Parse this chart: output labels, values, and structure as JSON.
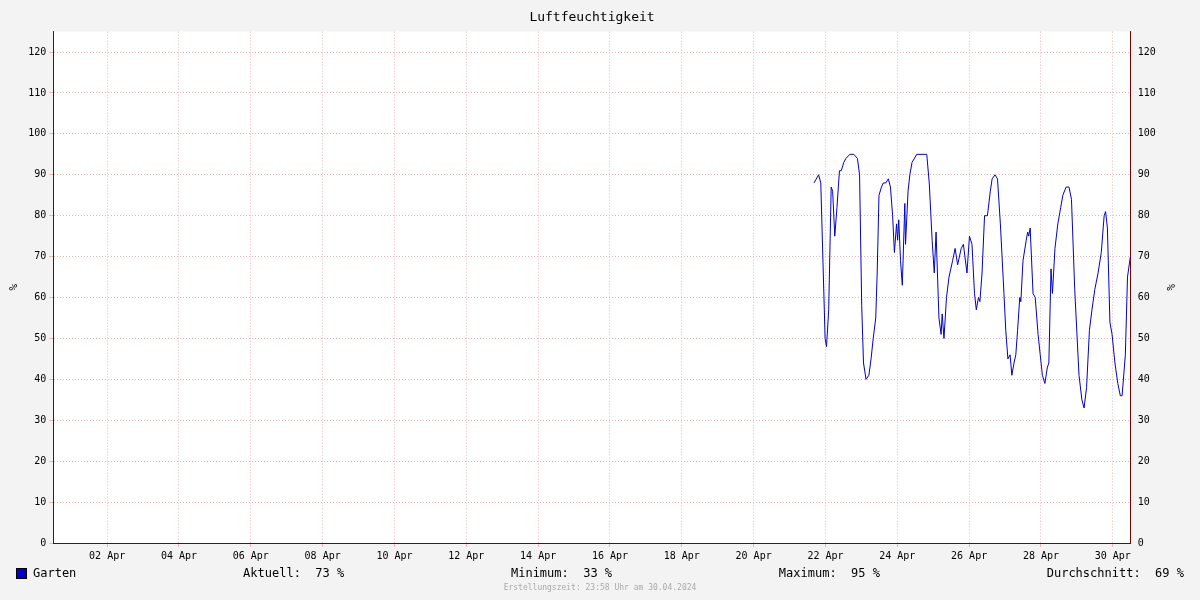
{
  "chart_data": {
    "type": "line",
    "title": "Luftfeuchtigkeit",
    "ylabel": "%",
    "y2label": "%",
    "x": [
      "2024-04-22T04:19",
      "2024-04-22T07:26",
      "2024-04-22T08:53",
      "2024-04-22T11:46",
      "2024-04-22T12:43",
      "2024-04-22T14:10",
      "2024-04-22T15:50",
      "2024-04-22T16:48",
      "2024-04-22T18:14",
      "2024-04-22T19:41",
      "2024-04-22T21:22",
      "2024-04-22T22:34",
      "2024-04-23T00:14",
      "2024-04-23T01:41",
      "2024-04-23T04:19",
      "2024-04-23T06:58",
      "2024-04-23T09:22",
      "2024-04-23T10:48",
      "2024-04-23T12:14",
      "2024-04-23T13:26",
      "2024-04-23T15:07",
      "2024-04-23T17:02",
      "2024-04-23T18:29",
      "2024-04-23T19:55",
      "2024-04-23T21:36",
      "2024-04-23T22:34",
      "2024-04-23T23:46",
      "2024-04-24T01:26",
      "2024-04-24T02:38",
      "2024-04-24T04:19",
      "2024-04-24T06:00",
      "2024-04-24T07:26",
      "2024-04-24T08:53",
      "2024-04-24T10:05",
      "2024-04-24T11:31",
      "2024-04-24T12:14",
      "2024-04-24T12:58",
      "2024-04-24T14:10",
      "2024-04-24T15:22",
      "2024-04-24T17:02",
      "2024-04-24T17:31",
      "2024-04-24T19:12",
      "2024-04-24T20:24",
      "2024-04-24T21:50",
      "2024-04-25T00:58",
      "2024-04-25T07:41",
      "2024-04-25T09:22",
      "2024-04-25T11:17",
      "2024-04-25T12:43",
      "2024-04-25T13:55",
      "2024-04-25T15:50",
      "2024-04-25T17:17",
      "2024-04-25T18:00",
      "2024-04-25T19:12",
      "2024-04-25T20:53",
      "2024-04-25T22:34",
      "2024-04-26T00:58",
      "2024-04-26T02:38",
      "2024-04-26T04:19",
      "2024-04-26T06:43",
      "2024-04-26T08:10",
      "2024-04-26T10:34",
      "2024-04-26T12:14",
      "2024-04-26T13:55",
      "2024-04-26T15:36",
      "2024-04-26T16:48",
      "2024-04-26T18:14",
      "2024-04-26T19:12",
      "2024-04-26T20:38",
      "2024-04-26T22:19",
      "2024-04-27T00:14",
      "2024-04-27T02:10",
      "2024-04-27T03:22",
      "2024-04-27T05:17",
      "2024-04-27T06:58",
      "2024-04-27T08:53",
      "2024-04-27T11:17",
      "2024-04-27T12:29",
      "2024-04-27T13:55",
      "2024-04-27T15:22",
      "2024-04-27T16:34",
      "2024-04-27T18:00",
      "2024-04-27T19:12",
      "2024-04-27T20:24",
      "2024-04-27T21:50",
      "2024-04-27T22:34",
      "2024-04-28T00:00",
      "2024-04-28T02:10",
      "2024-04-28T03:07",
      "2024-04-28T03:50",
      "2024-04-28T04:48",
      "2024-04-28T06:43",
      "2024-04-28T08:10",
      "2024-04-28T10:05",
      "2024-04-28T11:31",
      "2024-04-28T12:58",
      "2024-04-28T14:38",
      "2024-04-28T16:19",
      "2024-04-28T17:17",
      "2024-04-28T18:43",
      "2024-04-28T19:41",
      "2024-04-28T21:22",
      "2024-04-28T23:17",
      "2024-04-29T01:12",
      "2024-04-29T02:38",
      "2024-04-29T04:48",
      "2024-04-29T06:43",
      "2024-04-29T08:24",
      "2024-04-29T10:34",
      "2024-04-29T13:26",
      "2024-04-29T15:22",
      "2024-04-29T16:48",
      "2024-04-29T18:29",
      "2024-04-29T20:24",
      "2024-04-29T22:05",
      "2024-04-30T00:00",
      "2024-04-30T02:10",
      "2024-04-30T04:19",
      "2024-04-30T06:14",
      "2024-04-30T07:12",
      "2024-04-30T08:24",
      "2024-04-30T10:05",
      "2024-04-30T11:31",
      "2024-04-30T13:26",
      "2024-04-30T15:22",
      "2024-04-30T17:02",
      "2024-04-30T18:14",
      "2024-04-30T20:24",
      "2024-04-30T21:50",
      "2024-04-30T23:46"
    ],
    "series": [
      {
        "name": "Garten",
        "color": "#0000cc",
        "values": [
          88,
          90,
          88,
          50,
          48,
          57,
          87,
          86,
          75,
          82,
          91,
          91,
          93,
          94,
          95,
          95,
          94,
          90,
          58,
          44,
          40,
          41,
          45,
          50,
          55,
          66,
          85,
          87,
          88,
          88,
          89,
          87,
          80,
          71,
          78,
          74,
          79,
          69,
          63,
          83,
          73,
          86,
          90,
          93,
          95,
          95,
          88,
          74,
          66,
          76,
          55,
          51,
          56,
          50,
          60,
          65,
          69,
          72,
          68,
          72,
          73,
          66,
          75,
          73,
          61,
          57,
          60,
          59,
          66,
          80,
          80,
          86,
          89,
          90,
          89,
          78,
          61,
          52,
          45,
          46,
          41,
          44,
          46,
          52,
          60,
          59,
          69,
          74,
          76,
          75,
          77,
          61,
          60,
          51,
          46,
          41,
          39,
          43,
          44,
          67,
          61,
          72,
          78,
          82,
          85,
          87,
          87,
          84,
          62,
          41,
          35,
          33,
          38,
          52,
          57,
          62,
          66,
          71,
          80,
          81,
          77,
          54,
          51,
          44,
          39,
          36,
          36,
          46,
          65,
          70
        ]
      }
    ],
    "xlim": [
      "2024-04-01T00:00",
      "2024-05-01T00:00"
    ],
    "xticks": [
      {
        "value": "2024-04-02T12:00",
        "label": "02 Apr"
      },
      {
        "value": "2024-04-04T12:00",
        "label": "04 Apr"
      },
      {
        "value": "2024-04-06T12:00",
        "label": "06 Apr"
      },
      {
        "value": "2024-04-08T12:00",
        "label": "08 Apr"
      },
      {
        "value": "2024-04-10T12:00",
        "label": "10 Apr"
      },
      {
        "value": "2024-04-12T12:00",
        "label": "12 Apr"
      },
      {
        "value": "2024-04-14T12:00",
        "label": "14 Apr"
      },
      {
        "value": "2024-04-16T12:00",
        "label": "16 Apr"
      },
      {
        "value": "2024-04-18T12:00",
        "label": "18 Apr"
      },
      {
        "value": "2024-04-20T12:00",
        "label": "20 Apr"
      },
      {
        "value": "2024-04-22T12:00",
        "label": "22 Apr"
      },
      {
        "value": "2024-04-24T12:00",
        "label": "24 Apr"
      },
      {
        "value": "2024-04-26T12:00",
        "label": "26 Apr"
      },
      {
        "value": "2024-04-28T12:00",
        "label": "28 Apr"
      },
      {
        "value": "2024-04-30T12:00",
        "label": "30 Apr"
      }
    ],
    "ylim": [
      0,
      125
    ],
    "yticks": [
      0,
      10,
      20,
      30,
      40,
      50,
      60,
      70,
      80,
      90,
      100,
      110,
      120
    ],
    "y2lim": [
      0,
      125
    ],
    "y2ticks": [
      0,
      10,
      20,
      30,
      40,
      50,
      60,
      70,
      80,
      90,
      100,
      110,
      120
    ],
    "grid": true,
    "legend": "bottom left",
    "marker": "none",
    "line_style": "solid",
    "annotations": [
      "Aktuell:  73 %",
      "Minimum:  33 %",
      "Maximum:  95 %",
      "Durchschnitt:  69 %",
      "Erstellungszeit: 23:58 Uhr am 30.04.2024"
    ]
  }
}
